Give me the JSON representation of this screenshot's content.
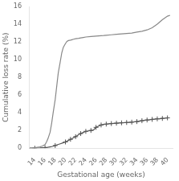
{
  "chart_data": {
    "type": "line",
    "xlabel": "Gestational age (weeks)",
    "ylabel": "Cumulative loss rate (%)",
    "xlim": [
      13,
      41
    ],
    "ylim": [
      0,
      16
    ],
    "xticks": [
      14,
      16,
      18,
      20,
      22,
      24,
      26,
      28,
      30,
      32,
      34,
      36,
      38,
      40
    ],
    "yticks": [
      0,
      2,
      4,
      6,
      8,
      10,
      12,
      14,
      16
    ],
    "grid": false,
    "series": [
      {
        "color": "#888888",
        "line_style": "solid",
        "marker": "none",
        "x": [
          13.0,
          13.5,
          14.0,
          14.5,
          15.0,
          15.5,
          16.0,
          16.3,
          16.6,
          17.0,
          17.3,
          17.6,
          18.0,
          18.3,
          18.6,
          19.0,
          19.3,
          19.6,
          20.0,
          20.3,
          20.6,
          21.0,
          21.3,
          21.6,
          22.0,
          22.3,
          22.6,
          23.0,
          23.5,
          24.0,
          25.0,
          26.0,
          27.0,
          27.5,
          28.0,
          29.0,
          30.0,
          31.0,
          32.0,
          33.0,
          34.0,
          35.0,
          36.0,
          37.0,
          38.0,
          39.0,
          40.0,
          40.5
        ],
        "values": [
          0.0,
          0.0,
          0.05,
          0.1,
          0.15,
          0.25,
          0.4,
          0.7,
          1.1,
          1.8,
          2.8,
          4.0,
          5.5,
          7.0,
          8.5,
          9.8,
          10.8,
          11.4,
          11.8,
          12.05,
          12.15,
          12.2,
          12.25,
          12.3,
          12.35,
          12.38,
          12.4,
          12.45,
          12.5,
          12.55,
          12.6,
          12.65,
          12.7,
          12.72,
          12.75,
          12.8,
          12.85,
          12.9,
          12.95,
          13.0,
          13.1,
          13.2,
          13.35,
          13.6,
          14.0,
          14.5,
          14.9,
          15.0
        ]
      },
      {
        "color": "#555555",
        "line_style": "solid",
        "marker": "none",
        "x": [
          13.0,
          14.0,
          14.5,
          15.0,
          15.5,
          16.0,
          16.5,
          17.0,
          17.5,
          18.0,
          18.5,
          19.0,
          19.5,
          20.0,
          20.5,
          21.0,
          21.5,
          22.0,
          22.5,
          23.0,
          23.5,
          24.0,
          24.5,
          25.0,
          25.5,
          26.0,
          26.5,
          27.0,
          27.5,
          28.0,
          28.5,
          29.0,
          29.5,
          30.0,
          30.5,
          31.0,
          31.5,
          32.0,
          32.5,
          33.0,
          33.5,
          34.0,
          34.5,
          35.0,
          35.5,
          36.0,
          36.5,
          37.0,
          37.5,
          38.0,
          38.5,
          39.0,
          39.5,
          40.0
        ],
        "values": [
          0.0,
          0.0,
          0.02,
          0.03,
          0.05,
          0.07,
          0.1,
          0.15,
          0.2,
          0.3,
          0.4,
          0.5,
          0.6,
          0.7,
          0.85,
          1.0,
          1.15,
          1.3,
          1.5,
          1.65,
          1.78,
          1.9,
          1.95,
          2.0,
          2.05,
          2.35,
          2.5,
          2.62,
          2.68,
          2.72,
          2.75,
          2.78,
          2.8,
          2.82,
          2.84,
          2.86,
          2.88,
          2.9,
          2.92,
          2.94,
          2.97,
          3.0,
          3.05,
          3.1,
          3.15,
          3.18,
          3.21,
          3.25,
          3.28,
          3.31,
          3.33,
          3.36,
          3.38,
          3.42
        ]
      },
      {
        "color": "#555555",
        "line_style": "none",
        "marker": "+",
        "x": [
          14.0,
          16.0,
          18.0,
          20.0,
          21.0,
          22.0,
          23.0,
          24.0,
          25.0,
          26.0,
          27.0,
          28.0,
          29.0,
          30.0,
          31.0,
          32.0,
          33.0,
          34.0,
          35.0,
          36.0,
          37.0,
          38.0,
          39.0,
          40.0
        ],
        "values": [
          0.0,
          0.07,
          0.3,
          0.7,
          1.0,
          1.3,
          1.65,
          1.9,
          2.0,
          2.35,
          2.62,
          2.72,
          2.78,
          2.82,
          2.86,
          2.9,
          2.94,
          3.0,
          3.1,
          3.18,
          3.25,
          3.31,
          3.36,
          3.42
        ]
      }
    ]
  }
}
